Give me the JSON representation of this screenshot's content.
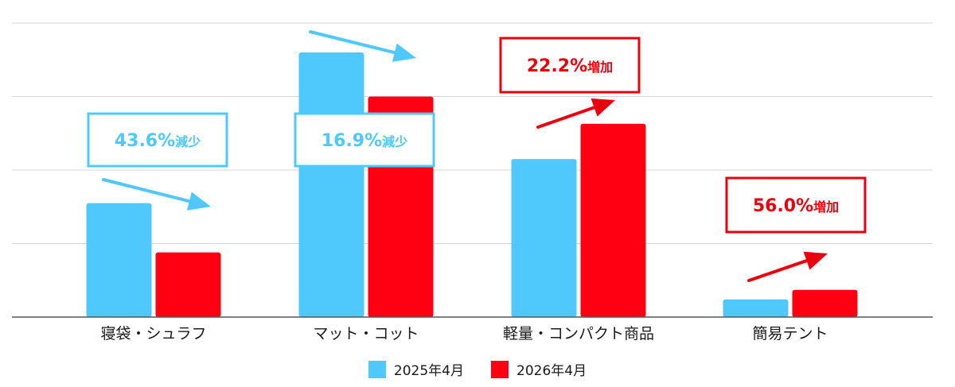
{
  "chart_data": {
    "type": "bar",
    "categories": [
      "寝袋・シュラフ",
      "マット・コット",
      "軽量・コンパクト商品",
      "簡易テント"
    ],
    "series": [
      {
        "name": "2025年4月",
        "color": "#4fc8fb",
        "values": [
          1.55,
          3.6,
          2.15,
          0.24
        ]
      },
      {
        "name": "2026年4月",
        "color": "#ff0013",
        "values": [
          0.88,
          3.0,
          2.63,
          0.37
        ]
      }
    ],
    "ylim": [
      0,
      4
    ],
    "yticks": [
      0,
      1,
      2,
      3,
      4
    ],
    "grid": true,
    "legend_position": "bottom",
    "annotations": [
      {
        "category": 0,
        "text": "43.6%",
        "suffix": "減少",
        "direction": "down",
        "color": "#4fc8fb"
      },
      {
        "category": 1,
        "text": "16.9%",
        "suffix": "減少",
        "direction": "down",
        "color": "#4fc8fb"
      },
      {
        "category": 2,
        "text": "22.2%",
        "suffix": "増加",
        "direction": "up",
        "color": "#e8000f"
      },
      {
        "category": 3,
        "text": "56.0%",
        "suffix": "増加",
        "direction": "up",
        "color": "#e8000f"
      }
    ]
  }
}
